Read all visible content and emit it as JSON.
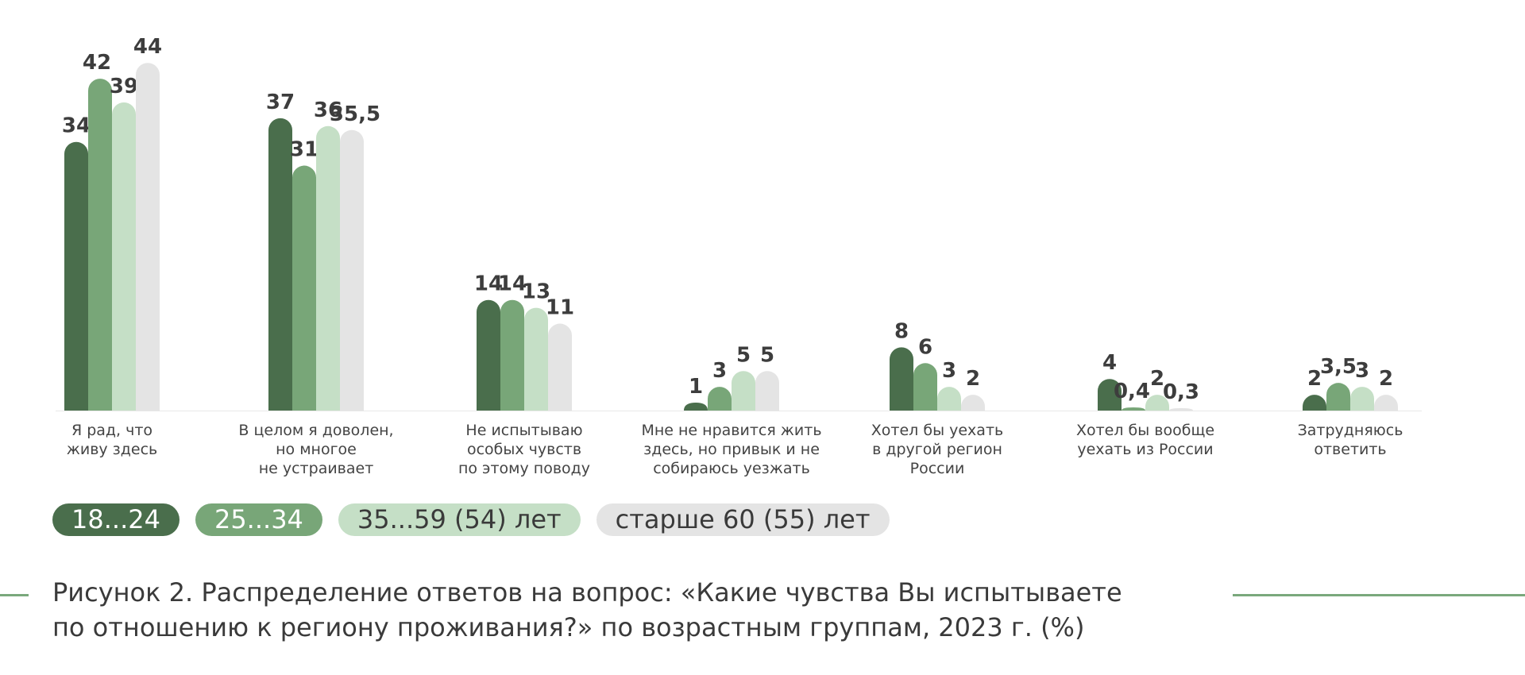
{
  "chart_data": {
    "type": "bar",
    "categories": [
      "Я рад, что\nживу здесь",
      "В целом я доволен,\nно многое\nне устраивает",
      "Не испытываю\nособых чувств\nпо этому поводу",
      "Мне не нравится жить\nздесь, но привык и не\nсобираюсь уезжать",
      "Хотел бы уехать\nв другой регион\nРоссии",
      "Хотел бы вообще\nуехать из России",
      "Затрудняюсь\nответить"
    ],
    "series": [
      {
        "name": "18...24",
        "color": "#4a6e4c",
        "values": [
          34,
          37,
          14,
          1,
          8,
          4,
          2
        ],
        "labels": [
          "34",
          "37",
          "14",
          "1",
          "8",
          "4",
          "2"
        ]
      },
      {
        "name": "25...34",
        "color": "#78a678",
        "values": [
          42,
          31,
          14,
          3,
          6,
          0.4,
          3.5
        ],
        "labels": [
          "42",
          "31",
          "14",
          "3",
          "6",
          "0,4",
          "3,5"
        ]
      },
      {
        "name": "35...59 (54) лет",
        "color": "#c5dfc6",
        "values": [
          39,
          36,
          13,
          5,
          3,
          2,
          3
        ],
        "labels": [
          "39",
          "36",
          "13",
          "5",
          "3",
          "2",
          "3"
        ]
      },
      {
        "name": "старше 60 (55) лет",
        "color": "#e4e4e4",
        "values": [
          44,
          35.5,
          11,
          5,
          2,
          0.3,
          2
        ],
        "labels": [
          "44",
          "35,5",
          "11",
          "5",
          "2",
          "0,3",
          "2"
        ]
      }
    ],
    "ylim": [
      0,
      44
    ],
    "grid": false,
    "legend_position": "bottom-left"
  },
  "legend": [
    {
      "label": "18...24",
      "bg": "#4a6e4c",
      "fg": "#ffffff"
    },
    {
      "label": "25...34",
      "bg": "#78a678",
      "fg": "#ffffff"
    },
    {
      "label": "35...59 (54) лет",
      "bg": "#c5dfc6",
      "fg": "#3a3a3a"
    },
    {
      "label": "старше 60 (55) лет",
      "bg": "#e4e4e4",
      "fg": "#3a3a3a"
    }
  ],
  "caption": {
    "line1": "Рисунок 2. Распределение ответов на вопрос: «Какие чувства Вы испытываете",
    "line2": "по отношению к региону проживания?» по возрастным группам, 2023 г. (%)"
  },
  "colors": {
    "accent_line": "#7aa87c",
    "baseline": "#e8e8e8"
  }
}
